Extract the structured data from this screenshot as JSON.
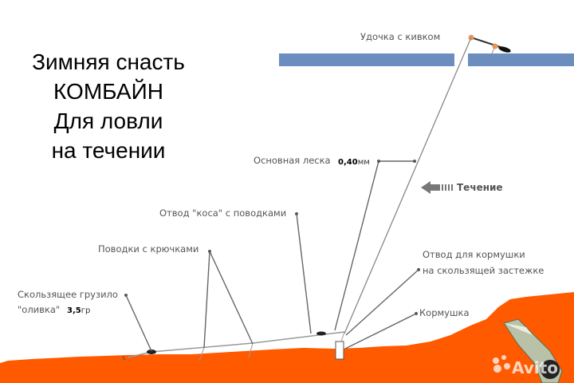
{
  "title": {
    "lines": [
      "Зимняя  снасть",
      "КОМБАЙН",
      "Для  ловли",
      "на  течении"
    ]
  },
  "labels": {
    "rod": "Удочка с кивком",
    "main_line": "Основная леска",
    "main_line_value": "0,40",
    "main_line_unit": "мм",
    "current": "Течение",
    "braid_branch": "Отвод \"коса\" с поводками",
    "hook_leaders": "Поводки с крючками",
    "sinker_line1": "Скользящее грузило",
    "sinker_line2": "\"оливка\"",
    "sinker_value": "3,5",
    "sinker_unit": "гр",
    "feeder_branch_line1": "Отвод для кормушки",
    "feeder_branch_line2": "на скользящей застежке",
    "feeder": "Кормушка"
  },
  "watermark": "Avito",
  "colors": {
    "ice": "#6c8ebf",
    "ground": "#ff5a00",
    "rod_accent": "#e8955a",
    "text": "#555555"
  }
}
